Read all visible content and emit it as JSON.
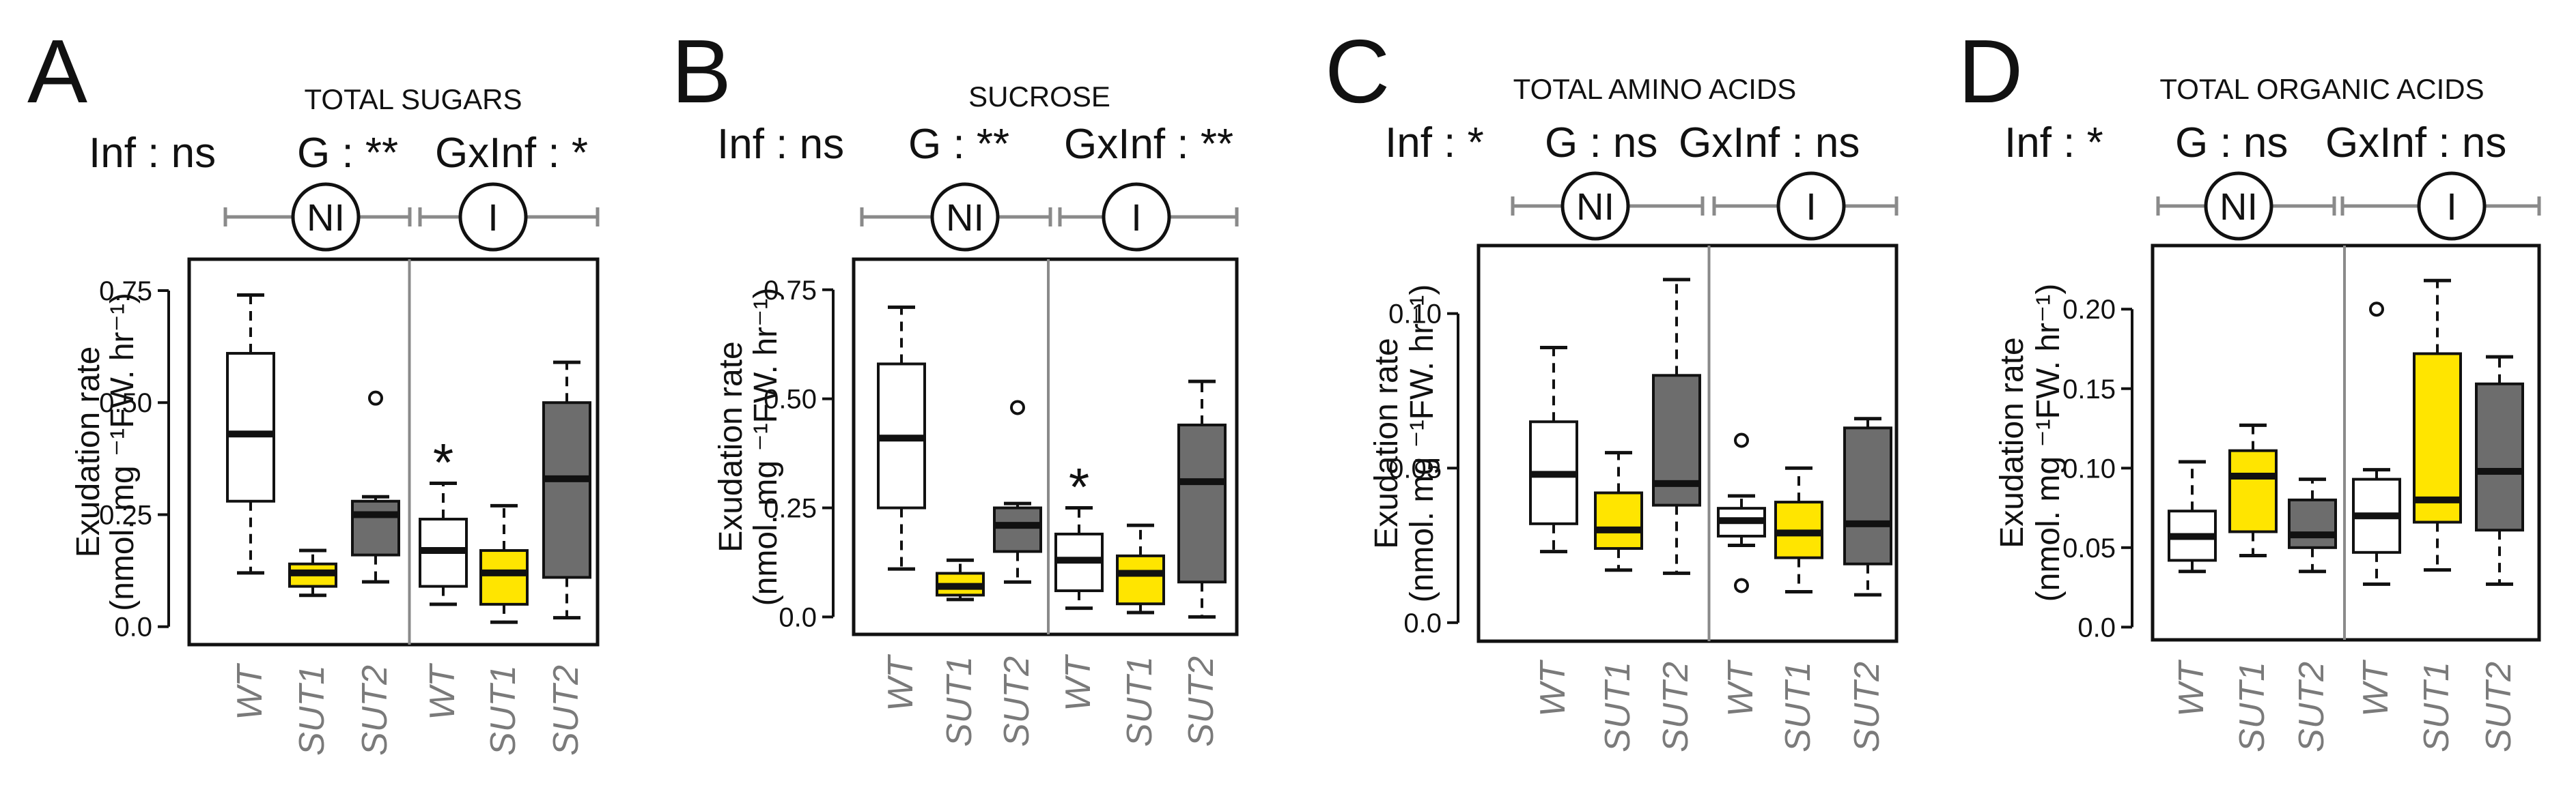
{
  "colors": {
    "white": "#ffffff",
    "yellow": "#ffe500",
    "gray": "#6d6d6d",
    "axis": "#111111",
    "divider": "#8a8a8a",
    "category": "#7a7a7a"
  },
  "chart_data": [
    {
      "type": "boxplot",
      "panel": "A",
      "title": "TOTAL SUGARS",
      "stats": {
        "inf": "Inf : ns",
        "g": "G : **",
        "gxinf": "GxInf : *"
      },
      "groups": {
        "left": "NI",
        "right": "I"
      },
      "ylabel_line1": "Exudation rate",
      "ylabel_line2": "(nmol. mg ⁻¹FW. hr⁻¹)",
      "ylim": [
        -0.04,
        0.82
      ],
      "yticks": [
        0.0,
        0.25,
        0.5,
        0.75
      ],
      "ytick_labels": [
        "0.0",
        "0.25",
        "0.50",
        "0.75"
      ],
      "categories": [
        "WT",
        "SUT1",
        "SUT2",
        "WT",
        "SUT1",
        "SUT2"
      ],
      "boxes": [
        {
          "group": "NI",
          "color": "white",
          "whisker_low": 0.12,
          "q1": 0.28,
          "median": 0.43,
          "q3": 0.61,
          "whisker_high": 0.74,
          "outliers": []
        },
        {
          "group": "NI",
          "color": "yellow",
          "whisker_low": 0.07,
          "q1": 0.09,
          "median": 0.12,
          "q3": 0.14,
          "whisker_high": 0.17,
          "outliers": []
        },
        {
          "group": "NI",
          "color": "gray",
          "whisker_low": 0.1,
          "q1": 0.16,
          "median": 0.25,
          "q3": 0.28,
          "whisker_high": 0.29,
          "outliers": [
            0.51
          ]
        },
        {
          "group": "I",
          "color": "white",
          "whisker_low": 0.05,
          "q1": 0.09,
          "median": 0.17,
          "q3": 0.24,
          "whisker_high": 0.32,
          "outliers": [],
          "star": "*"
        },
        {
          "group": "I",
          "color": "yellow",
          "whisker_low": 0.01,
          "q1": 0.05,
          "median": 0.12,
          "q3": 0.17,
          "whisker_high": 0.27,
          "outliers": []
        },
        {
          "group": "I",
          "color": "gray",
          "whisker_low": 0.02,
          "q1": 0.11,
          "median": 0.33,
          "q3": 0.5,
          "whisker_high": 0.59,
          "outliers": []
        }
      ]
    },
    {
      "type": "boxplot",
      "panel": "B",
      "title": "SUCROSE",
      "stats": {
        "inf": "Inf : ns",
        "g": "G : **",
        "gxinf": "GxInf : **"
      },
      "groups": {
        "left": "NI",
        "right": "I"
      },
      "ylabel_line1": "Exudation rate",
      "ylabel_line2": "(nmol. mg ⁻¹FW. hr⁻¹)",
      "ylim": [
        -0.04,
        0.82
      ],
      "yticks": [
        0.0,
        0.25,
        0.5,
        0.75
      ],
      "ytick_labels": [
        "0.0",
        "0.25",
        "0.50",
        "0.75"
      ],
      "categories": [
        "WT",
        "SUT1",
        "SUT2",
        "WT",
        "SUT1",
        "SUT2"
      ],
      "boxes": [
        {
          "group": "NI",
          "color": "white",
          "whisker_low": 0.11,
          "q1": 0.25,
          "median": 0.41,
          "q3": 0.58,
          "whisker_high": 0.71,
          "outliers": []
        },
        {
          "group": "NI",
          "color": "yellow",
          "whisker_low": 0.04,
          "q1": 0.05,
          "median": 0.07,
          "q3": 0.1,
          "whisker_high": 0.13,
          "outliers": []
        },
        {
          "group": "NI",
          "color": "gray",
          "whisker_low": 0.08,
          "q1": 0.15,
          "median": 0.21,
          "q3": 0.25,
          "whisker_high": 0.26,
          "outliers": [
            0.48
          ]
        },
        {
          "group": "I",
          "color": "white",
          "whisker_low": 0.02,
          "q1": 0.06,
          "median": 0.13,
          "q3": 0.19,
          "whisker_high": 0.25,
          "outliers": [],
          "star": "*"
        },
        {
          "group": "I",
          "color": "yellow",
          "whisker_low": 0.01,
          "q1": 0.03,
          "median": 0.1,
          "q3": 0.14,
          "whisker_high": 0.21,
          "outliers": []
        },
        {
          "group": "I",
          "color": "gray",
          "whisker_low": 0.0,
          "q1": 0.08,
          "median": 0.31,
          "q3": 0.44,
          "whisker_high": 0.54,
          "outliers": []
        }
      ]
    },
    {
      "type": "boxplot",
      "panel": "C",
      "title": "TOTAL AMINO ACIDS",
      "stats": {
        "inf": "Inf : *",
        "g": "G : ns",
        "gxinf": "GxInf : ns"
      },
      "groups": {
        "left": "NI",
        "right": "I"
      },
      "ylabel_line1": "Exudation rate",
      "ylabel_line2": "(nmol. mg ⁻¹FW. hr⁻¹)",
      "ylim": [
        -0.006,
        0.122
      ],
      "yticks": [
        0.0,
        0.05,
        0.1
      ],
      "ytick_labels": [
        "0.0",
        "0.05",
        "0.10"
      ],
      "categories": [
        "WT",
        "SUT1",
        "SUT2",
        "WT",
        "SUT1",
        "SUT2"
      ],
      "boxes": [
        {
          "group": "NI",
          "color": "white",
          "whisker_low": 0.023,
          "q1": 0.032,
          "median": 0.048,
          "q3": 0.065,
          "whisker_high": 0.089,
          "outliers": []
        },
        {
          "group": "NI",
          "color": "yellow",
          "whisker_low": 0.017,
          "q1": 0.024,
          "median": 0.03,
          "q3": 0.042,
          "whisker_high": 0.055,
          "outliers": []
        },
        {
          "group": "NI",
          "color": "gray",
          "whisker_low": 0.016,
          "q1": 0.038,
          "median": 0.045,
          "q3": 0.08,
          "whisker_high": 0.111,
          "outliers": []
        },
        {
          "group": "I",
          "color": "white",
          "whisker_low": 0.025,
          "q1": 0.028,
          "median": 0.033,
          "q3": 0.037,
          "whisker_high": 0.041,
          "outliers": [
            0.059,
            0.012
          ]
        },
        {
          "group": "I",
          "color": "yellow",
          "whisker_low": 0.01,
          "q1": 0.021,
          "median": 0.029,
          "q3": 0.039,
          "whisker_high": 0.05,
          "outliers": []
        },
        {
          "group": "I",
          "color": "gray",
          "whisker_low": 0.009,
          "q1": 0.019,
          "median": 0.032,
          "q3": 0.063,
          "whisker_high": 0.066,
          "outliers": []
        }
      ]
    },
    {
      "type": "boxplot",
      "panel": "D",
      "title": "TOTAL ORGANIC ACIDS",
      "stats": {
        "inf": "Inf : *",
        "g": "G : ns",
        "gxinf": "GxInf : ns"
      },
      "groups": {
        "left": "NI",
        "right": "I"
      },
      "ylabel_line1": "Exudation rate",
      "ylabel_line2": "(nmol. mg ⁻¹FW. hr⁻¹)",
      "ylim": [
        -0.008,
        0.24
      ],
      "yticks": [
        0.0,
        0.05,
        0.1,
        0.15,
        0.2
      ],
      "ytick_labels": [
        "0.0",
        "0.05",
        "0.10",
        "0.15",
        "0.20"
      ],
      "categories": [
        "WT",
        "SUT1",
        "SUT2",
        "WT",
        "SUT1",
        "SUT2"
      ],
      "boxes": [
        {
          "group": "NI",
          "color": "white",
          "whisker_low": 0.035,
          "q1": 0.042,
          "median": 0.057,
          "q3": 0.073,
          "whisker_high": 0.104,
          "outliers": []
        },
        {
          "group": "NI",
          "color": "yellow",
          "whisker_low": 0.045,
          "q1": 0.06,
          "median": 0.095,
          "q3": 0.111,
          "whisker_high": 0.127,
          "outliers": []
        },
        {
          "group": "NI",
          "color": "gray",
          "whisker_low": 0.035,
          "q1": 0.05,
          "median": 0.058,
          "q3": 0.08,
          "whisker_high": 0.093,
          "outliers": []
        },
        {
          "group": "I",
          "color": "white",
          "whisker_low": 0.027,
          "q1": 0.047,
          "median": 0.07,
          "q3": 0.093,
          "whisker_high": 0.099,
          "outliers": [
            0.2
          ]
        },
        {
          "group": "I",
          "color": "yellow",
          "whisker_low": 0.036,
          "q1": 0.066,
          "median": 0.08,
          "q3": 0.172,
          "whisker_high": 0.218,
          "outliers": []
        },
        {
          "group": "I",
          "color": "gray",
          "whisker_low": 0.027,
          "q1": 0.061,
          "median": 0.098,
          "q3": 0.153,
          "whisker_high": 0.17,
          "outliers": []
        }
      ]
    }
  ]
}
